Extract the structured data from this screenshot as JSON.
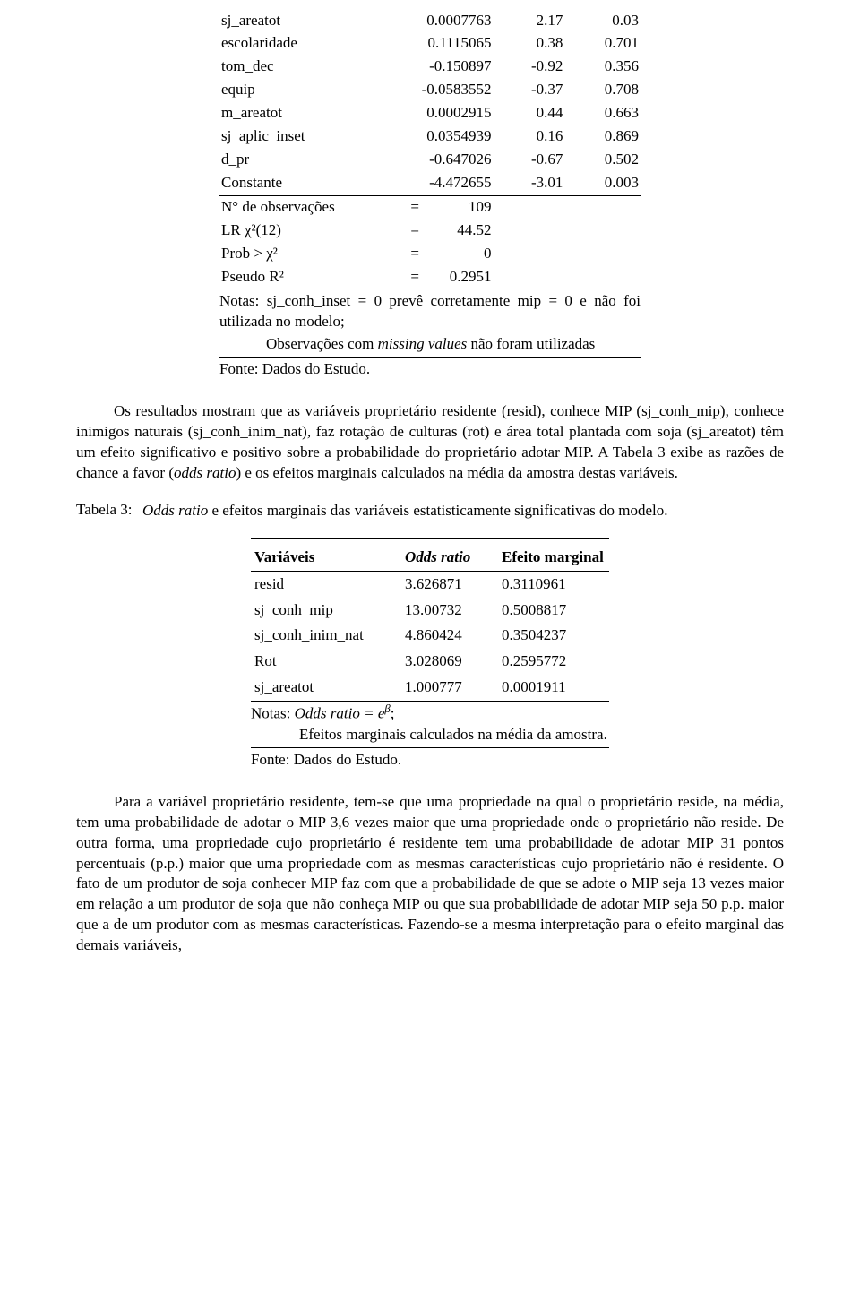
{
  "table1": {
    "rows": [
      {
        "v": "sj_areatot",
        "c": "0.0007763",
        "z": "2.17",
        "p": "0.03"
      },
      {
        "v": "escolaridade",
        "c": "0.1115065",
        "z": "0.38",
        "p": "0.701"
      },
      {
        "v": "tom_dec",
        "c": "-0.150897",
        "z": "-0.92",
        "p": "0.356"
      },
      {
        "v": "equip",
        "c": "-0.0583552",
        "z": "-0.37",
        "p": "0.708"
      },
      {
        "v": "m_areatot",
        "c": "0.0002915",
        "z": "0.44",
        "p": "0.663"
      },
      {
        "v": "sj_aplic_inset",
        "c": "0.0354939",
        "z": "0.16",
        "p": "0.869"
      },
      {
        "v": "d_pr",
        "c": "-0.647026",
        "z": "-0.67",
        "p": "0.502"
      },
      {
        "v": "Constante",
        "c": "-4.472655",
        "z": "-3.01",
        "p": "0.003"
      }
    ],
    "stats": [
      {
        "label": "N° de observações",
        "eq": "=",
        "val": "109"
      },
      {
        "label": "LR χ²(12)",
        "eq": "=",
        "val": "44.52"
      },
      {
        "label": "Prob > χ²",
        "eq": "=",
        "val": "0"
      },
      {
        "label": "Pseudo R²",
        "eq": "=",
        "val": "0.2951"
      }
    ],
    "notes_l1": "Notas: sj_conh_inset = 0 prevê corretamente mip = 0 e não foi utilizada no modelo;",
    "notes_l2_a": "Observações com ",
    "notes_l2_b": "missing values",
    "notes_l2_c": " não foram utilizadas",
    "fonte": "Fonte: Dados do Estudo."
  },
  "para1_a": "Os resultados mostram que as variáveis proprietário residente (resid), conhece MIP (sj_conh_mip), conhece inimigos naturais (sj_conh_inim_nat), faz rotação de culturas (rot) e área total plantada com soja (sj_areatot) têm um efeito significativo e positivo sobre a probabilidade do proprietário adotar MIP. A Tabela 3 exibe as razões de chance a favor (",
  "para1_b": "odds ratio",
  "para1_c": ") e os efeitos marginais calculados na média da amostra destas variáveis.",
  "caption": {
    "label": "Tabela 3:",
    "body_a": "Odds ratio",
    "body_b": " e efeitos marginais das variáveis estatisticamente significativas do modelo."
  },
  "table2": {
    "headers": {
      "c1": "Variáveis",
      "c2": "Odds ratio",
      "c3": "Efeito marginal"
    },
    "rows": [
      {
        "v": "resid",
        "or": "3.626871",
        "em": "0.3110961"
      },
      {
        "v": "sj_conh_mip",
        "or": "13.00732",
        "em": "0.5008817"
      },
      {
        "v": "sj_conh_inim_nat",
        "or": "4.860424",
        "em": "0.3504237"
      },
      {
        "v": "Rot",
        "or": "3.028069",
        "em": "0.2595772"
      },
      {
        "v": "sj_areatot",
        "or": "1.000777",
        "em": "0.0001911"
      }
    ],
    "notes_l1_a": "Notas:  ",
    "notes_l1_b": "Odds ratio = e",
    "notes_l1_exp": "β",
    "notes_l1_c": ";",
    "notes_l2": "Efeitos marginais calculados na média da amostra.",
    "fonte": "Fonte: Dados do Estudo."
  },
  "para2": "Para a variável proprietário residente, tem-se que uma propriedade na qual o proprietário reside, na média, tem uma probabilidade de adotar o MIP 3,6 vezes maior que uma propriedade onde o proprietário não reside. De outra forma, uma propriedade cujo proprietário é residente tem uma probabilidade de adotar MIP 31 pontos percentuais (p.p.) maior que uma propriedade com as mesmas características cujo proprietário não é residente. O fato de um produtor de soja conhecer MIP faz com que a probabilidade de que se adote o MIP seja 13 vezes maior em relação a um produtor de soja que não conheça MIP ou que sua probabilidade de adotar MIP seja 50 p.p. maior que a de um produtor com as mesmas características. Fazendo-se a mesma interpretação para o efeito marginal das demais variáveis,"
}
